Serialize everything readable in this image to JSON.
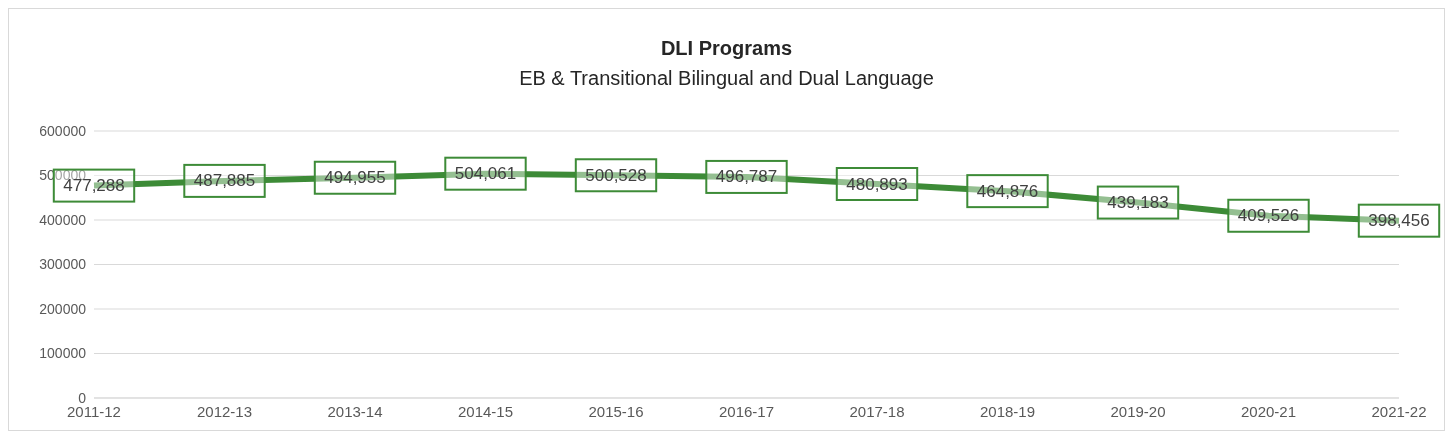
{
  "chart_data": {
    "type": "line",
    "title": "DLI Programs",
    "subtitle": "EB & Transitional Bilingual and Dual Language",
    "categories": [
      "2011-12",
      "2012-13",
      "2013-14",
      "2014-15",
      "2015-16",
      "2016-17",
      "2017-18",
      "2018-19",
      "2019-20",
      "2020-21",
      "2021-22"
    ],
    "series": [
      {
        "color": "#3d8b37",
        "values": [
          477288,
          487885,
          494955,
          504061,
          500528,
          496787,
          480893,
          464876,
          439183,
          409526,
          398456
        ],
        "value_labels": [
          "477,288",
          "487,885",
          "494,955",
          "504,061",
          "500,528",
          "496,787",
          "480,893",
          "464,876",
          "439,183",
          "409,526",
          "398,456"
        ]
      }
    ],
    "ylim": [
      0,
      600000
    ],
    "yticks": [
      0,
      100000,
      200000,
      300000,
      400000,
      500000,
      600000
    ],
    "grid": "y",
    "line_style": "solid"
  }
}
